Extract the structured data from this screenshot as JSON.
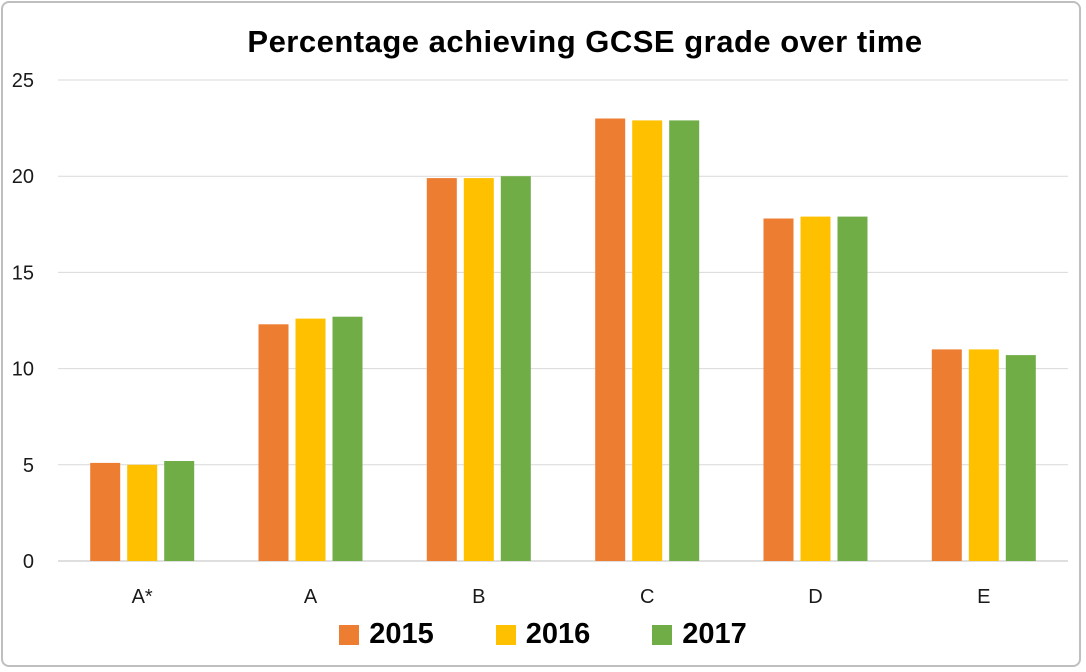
{
  "chart_data": {
    "type": "bar",
    "title": "Percentage achieving GCSE grade over time",
    "xlabel": "",
    "ylabel": "",
    "categories": [
      "A*",
      "A",
      "B",
      "C",
      "D",
      "E"
    ],
    "series": [
      {
        "name": "2015",
        "color": "#ED7D31",
        "values": [
          5.1,
          12.3,
          19.9,
          23.0,
          17.8,
          11.0
        ]
      },
      {
        "name": "2016",
        "color": "#FFC000",
        "values": [
          5.0,
          12.6,
          19.9,
          22.9,
          17.9,
          11.0
        ]
      },
      {
        "name": "2017",
        "color": "#70AD47",
        "values": [
          5.2,
          12.7,
          20.0,
          22.9,
          17.9,
          10.7
        ]
      }
    ],
    "ylim": [
      0,
      25
    ],
    "yticks": [
      0,
      5,
      10,
      15,
      20,
      25
    ],
    "grid": true,
    "legend_position": "bottom"
  }
}
